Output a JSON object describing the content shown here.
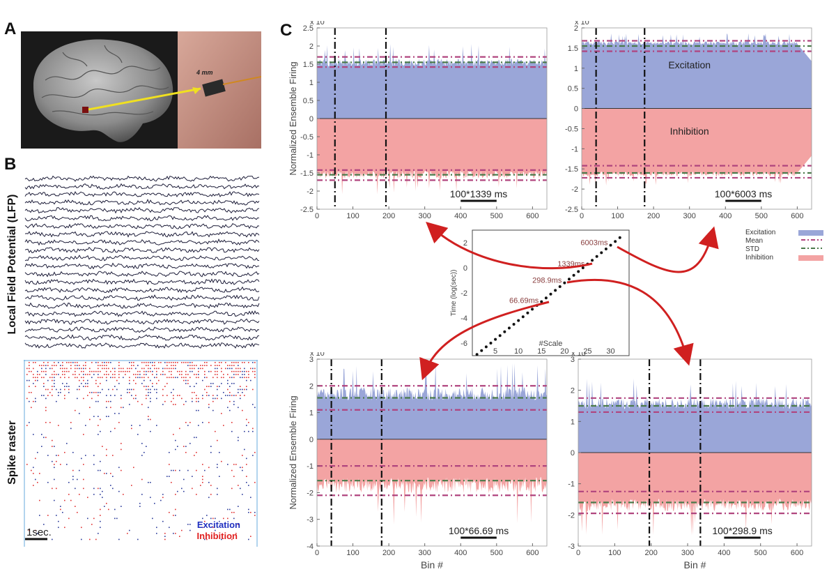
{
  "panels": {
    "a": {
      "letter": "A",
      "electrode_label": "4 mm"
    },
    "b": {
      "letter": "B",
      "lfp_label": "Local Field Potential (LFP)",
      "raster_label": "Spike raster",
      "scale_label": "1sec.",
      "legend_excitation": "Excitation",
      "legend_inhibition": "Inhibition"
    },
    "c": {
      "letter": "C",
      "legend": {
        "excitation": "Excitation",
        "mean": "Mean",
        "std": "STD",
        "inhibition": "Inhibition"
      }
    }
  },
  "colors": {
    "excitation_fill": "#9aa6d8",
    "inhibition_fill": "#f3a3a3",
    "mean_line": "#4a7a4a",
    "std_line": "#b0447e",
    "scale_line": "#111111",
    "arrow": "#d02020",
    "raster_excitation": "#2a3a9a",
    "raster_inhibition": "#e03030"
  },
  "chart_data": [
    {
      "type": "area",
      "panel": "top-left",
      "ylabel": "Normalized Ensemble Firing",
      "xlabel": "",
      "exponent": "x 10",
      "exponent_power": "-3",
      "xlim": [
        0,
        640
      ],
      "ylim": [
        -2.5,
        2.5
      ],
      "xticks": [
        "0",
        "100",
        "200",
        "300",
        "400",
        "500",
        "600"
      ],
      "yticks": [
        "-2.5",
        "-2",
        "-1.5",
        "-1",
        "-0.5",
        "0",
        "0.5",
        "1",
        "1.5",
        "2",
        "2.5"
      ],
      "series": [
        {
          "name": "Excitation",
          "mean": 1.55,
          "std_upper": 1.7,
          "std_lower": 1.42,
          "level": 1.5,
          "noise": 0.22
        },
        {
          "name": "Inhibition",
          "mean": -1.55,
          "std_upper": -1.7,
          "std_lower": -1.42,
          "level": -1.5,
          "noise": 0.22
        }
      ],
      "vlines": [
        50,
        192
      ],
      "scale_label": "100*1339 ms",
      "scale_bar_bins": [
        400,
        500
      ]
    },
    {
      "type": "area",
      "panel": "top-right",
      "ylabel": "",
      "xlabel": "",
      "exponent": "x 10",
      "exponent_power": "-3",
      "xlim": [
        0,
        640
      ],
      "ylim": [
        -2.5,
        2
      ],
      "xticks": [
        "0",
        "100",
        "200",
        "300",
        "400",
        "500",
        "600"
      ],
      "yticks": [
        "-2.5",
        "-2",
        "-1.5",
        "-1",
        "-0.5",
        "0",
        "0.5",
        "1",
        "1.5",
        "2"
      ],
      "series": [
        {
          "name": "Excitation",
          "mean": 1.55,
          "std_upper": 1.68,
          "std_lower": 1.42,
          "level": 1.6,
          "noise": 0.1
        },
        {
          "name": "Inhibition",
          "mean": -1.6,
          "std_upper": -1.72,
          "std_lower": -1.42,
          "level": -1.6,
          "noise": 0.12
        }
      ],
      "vlines": [
        40,
        175
      ],
      "annotations": [
        {
          "text": "Excitation",
          "x": 300,
          "y": 1.0
        },
        {
          "text": "Inhibition",
          "x": 300,
          "y": -0.65
        }
      ],
      "scale_label": "100*6003 ms",
      "scale_bar_bins": [
        400,
        500
      ]
    },
    {
      "type": "scatter",
      "panel": "center",
      "ylabel": "Time (log(sec))",
      "xlabel": "#Scale",
      "xlim": [
        0,
        34
      ],
      "ylim": [
        -7,
        3
      ],
      "xticks": [
        "5",
        "10",
        "15",
        "20",
        "25",
        "30"
      ],
      "yticks": [
        "-6",
        "-4",
        "-2",
        "0",
        "2"
      ],
      "x": [
        1,
        2,
        3,
        4,
        5,
        6,
        7,
        8,
        9,
        10,
        11,
        12,
        13,
        14,
        15,
        16,
        17,
        18,
        19,
        20,
        21,
        22,
        23,
        24,
        25,
        26,
        27,
        28,
        29,
        30,
        31,
        32
      ],
      "y": [
        -6.9,
        -6.6,
        -6.3,
        -6.0,
        -5.7,
        -5.4,
        -5.1,
        -4.8,
        -4.5,
        -4.2,
        -3.9,
        -3.6,
        -3.3,
        -3.0,
        -2.7,
        -2.4,
        -2.1,
        -1.8,
        -1.5,
        -1.2,
        -0.9,
        -0.6,
        -0.3,
        0.0,
        0.3,
        0.6,
        0.9,
        1.2,
        1.5,
        1.8,
        2.1,
        2.4
      ],
      "labels": [
        {
          "text": "6003ms",
          "x": 30,
          "y": 1.8
        },
        {
          "text": "1339ms",
          "x": 25,
          "y": 0.1
        },
        {
          "text": "298.9ms",
          "x": 20,
          "y": -1.2
        },
        {
          "text": "66.69ms",
          "x": 15,
          "y": -2.8
        }
      ]
    },
    {
      "type": "area",
      "panel": "bottom-left",
      "ylabel": "Normalized Ensemble Firing",
      "xlabel": "Bin #",
      "exponent": "x 10",
      "exponent_power": "-3",
      "xlim": [
        0,
        640
      ],
      "ylim": [
        -4,
        3
      ],
      "xticks": [
        "0",
        "100",
        "200",
        "300",
        "400",
        "500",
        "600"
      ],
      "yticks": [
        "-4",
        "-3",
        "-2",
        "-1",
        "0",
        "1",
        "2",
        "3"
      ],
      "series": [
        {
          "name": "Excitation",
          "mean": 1.55,
          "std_upper": 2.0,
          "std_lower": 1.1,
          "level": 1.6,
          "noise": 0.5
        },
        {
          "name": "Inhibition",
          "mean": -1.55,
          "std_upper": -2.1,
          "std_lower": -1.0,
          "level": -1.6,
          "noise": 0.6
        }
      ],
      "vlines": [
        40,
        180
      ],
      "scale_label": "100*66.69 ms",
      "scale_bar_bins": [
        400,
        500
      ]
    },
    {
      "type": "area",
      "panel": "bottom-right",
      "ylabel": "",
      "xlabel": "Bin #",
      "exponent": "x 10",
      "exponent_power": "-3",
      "xlim": [
        0,
        640
      ],
      "ylim": [
        -3,
        3
      ],
      "xticks": [
        "0",
        "100",
        "200",
        "300",
        "400",
        "500",
        "600"
      ],
      "yticks": [
        "-3",
        "-2",
        "-1",
        "0",
        "1",
        "2",
        "3"
      ],
      "series": [
        {
          "name": "Excitation",
          "mean": 1.5,
          "std_upper": 1.75,
          "std_lower": 1.3,
          "level": 1.5,
          "noise": 0.35
        },
        {
          "name": "Inhibition",
          "mean": -1.6,
          "std_upper": -1.95,
          "std_lower": -1.25,
          "level": -1.6,
          "noise": 0.4
        }
      ],
      "vlines": [
        195,
        335
      ],
      "scale_label": "100*298.9 ms",
      "scale_bar_bins": [
        400,
        500
      ]
    }
  ]
}
